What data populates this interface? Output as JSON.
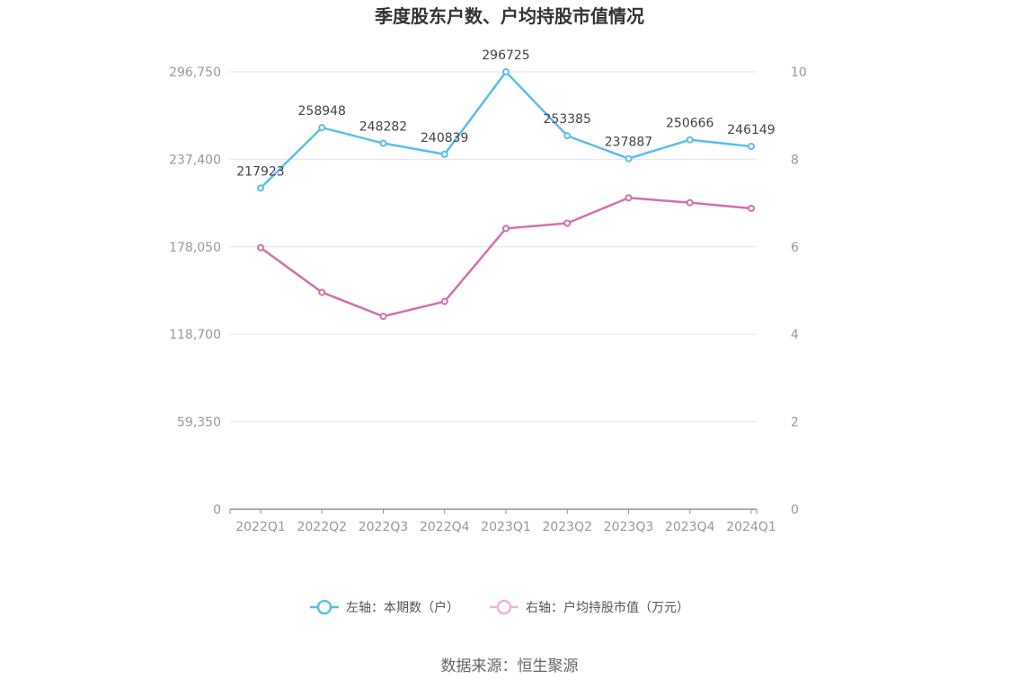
{
  "chart_data": {
    "type": "line",
    "title": "季度股东户数、户均持股市值情况",
    "categories": [
      "2022Q1",
      "2022Q2",
      "2022Q3",
      "2022Q4",
      "2023Q1",
      "2023Q2",
      "2023Q3",
      "2023Q4",
      "2024Q1"
    ],
    "series": [
      {
        "name": "左轴：本期数（户）",
        "axis": "left",
        "color": "#5bbdef",
        "values": [
          217923,
          258948,
          248282,
          240839,
          296725,
          253385,
          237887,
          250666,
          246149
        ],
        "data_labels": [
          "217923",
          "258948",
          "248282",
          "240839",
          "296725",
          "253385",
          "237887",
          "250666",
          "246149"
        ]
      },
      {
        "name": "右轴：户均持股市值（万元）",
        "axis": "right",
        "color": "#d46fae",
        "legend_color": "#eeb3d7",
        "values": [
          5.98,
          4.96,
          4.41,
          4.75,
          6.42,
          6.54,
          7.12,
          7.01,
          6.88
        ]
      }
    ],
    "y_left": {
      "ylim": [
        0,
        296750
      ],
      "ticks": [
        0,
        59350,
        118700,
        178050,
        237400,
        296750
      ],
      "tick_labels": [
        "0",
        "59,350",
        "118,700",
        "178,050",
        "237,400",
        "296,750"
      ]
    },
    "y_right": {
      "ylim": [
        0,
        10
      ],
      "ticks": [
        0,
        2,
        4,
        6,
        8,
        10
      ],
      "tick_labels": [
        "0",
        "2",
        "4",
        "6",
        "8",
        "10"
      ]
    },
    "grid": true,
    "legend_position": "bottom-center",
    "source": "数据来源：恒生聚源"
  }
}
